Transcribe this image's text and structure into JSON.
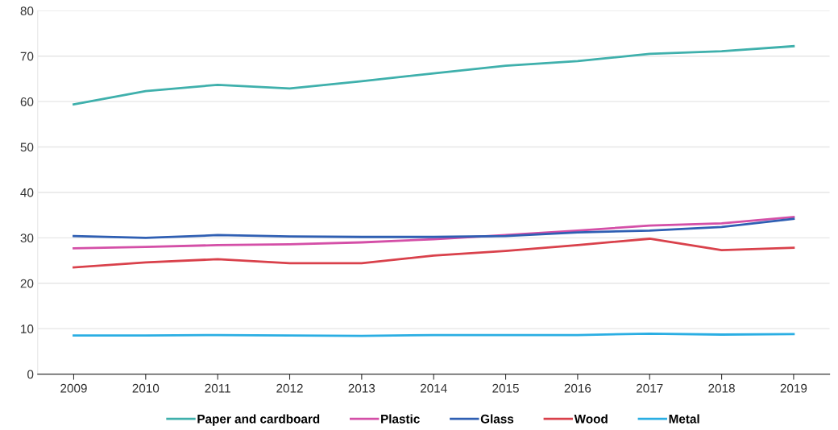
{
  "chart_data": {
    "type": "line",
    "categories": [
      "2009",
      "2010",
      "2011",
      "2012",
      "2013",
      "2014",
      "2015",
      "2016",
      "2017",
      "2018",
      "2019"
    ],
    "series": [
      {
        "name": "Paper and cardboard",
        "color": "#3fb0ac",
        "values": [
          59.4,
          62.3,
          63.7,
          62.9,
          64.5,
          66.2,
          67.9,
          68.9,
          70.5,
          71.1,
          72.2
        ]
      },
      {
        "name": "Plastic",
        "color": "#d44fa7",
        "values": [
          27.7,
          28.0,
          28.4,
          28.6,
          29.0,
          29.7,
          30.6,
          31.6,
          32.7,
          33.2,
          34.6
        ]
      },
      {
        "name": "Glass",
        "color": "#2f5fb3",
        "values": [
          30.4,
          30.0,
          30.6,
          30.3,
          30.2,
          30.2,
          30.4,
          31.2,
          31.6,
          32.4,
          34.2
        ]
      },
      {
        "name": "Wood",
        "color": "#d9414b",
        "values": [
          23.5,
          24.6,
          25.3,
          24.4,
          24.4,
          26.1,
          27.1,
          28.4,
          29.8,
          27.3,
          27.8
        ]
      },
      {
        "name": "Metal",
        "color": "#2aaee3",
        "values": [
          8.5,
          8.5,
          8.6,
          8.5,
          8.4,
          8.6,
          8.6,
          8.6,
          8.9,
          8.7,
          8.8
        ]
      }
    ],
    "ylim": [
      0,
      80
    ],
    "yticks": [
      0,
      10,
      20,
      30,
      40,
      50,
      60,
      70,
      80
    ],
    "grid": "y",
    "legend": "bottom",
    "marker": "none",
    "line_style": "solid"
  }
}
